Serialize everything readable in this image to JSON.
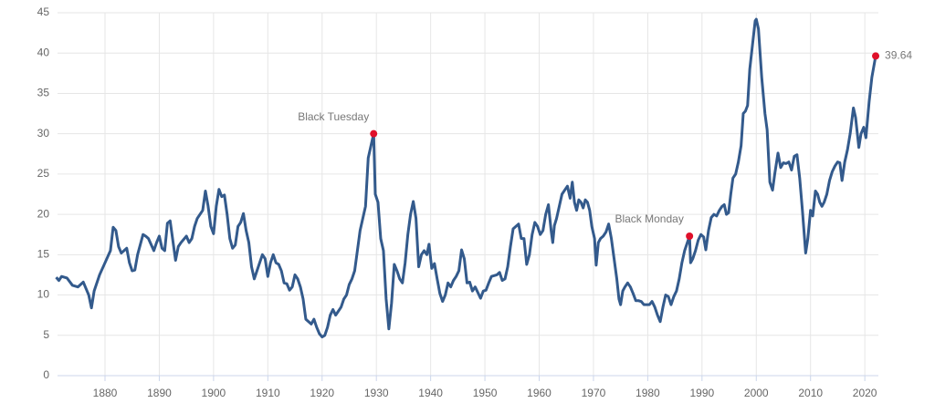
{
  "chart_data": {
    "type": "line",
    "xlim": [
      1871.25,
      2022.5
    ],
    "ylim": [
      0,
      45
    ],
    "xticks": [
      1880,
      1890,
      1900,
      1910,
      1920,
      1930,
      1940,
      1950,
      1960,
      1970,
      1980,
      1990,
      2000,
      2010,
      2020
    ],
    "yticks": [
      0,
      5,
      10,
      15,
      20,
      25,
      30,
      35,
      40,
      45
    ],
    "grid": true,
    "series": [
      {
        "color": "#335a8c",
        "x": [
          1871,
          1871.5,
          1872,
          1873,
          1874,
          1875,
          1876,
          1877,
          1877.5,
          1878,
          1879,
          1880,
          1881,
          1881.5,
          1882,
          1882.5,
          1883,
          1884,
          1884.5,
          1885,
          1885.5,
          1886,
          1887,
          1887.5,
          1888,
          1889,
          1889.5,
          1890,
          1890.5,
          1891,
          1891.5,
          1892,
          1893,
          1893.5,
          1894,
          1895,
          1895.5,
          1896,
          1896.5,
          1897,
          1898,
          1898.5,
          1899,
          1899.5,
          1900,
          1900.5,
          1901,
          1901.5,
          1902,
          1902.5,
          1903,
          1903.5,
          1904,
          1904.5,
          1905,
          1905.5,
          1906,
          1906.5,
          1907,
          1907.5,
          1908,
          1909,
          1909.5,
          1910,
          1910.5,
          1911,
          1911.5,
          1912,
          1912.5,
          1913,
          1913.5,
          1914,
          1914.5,
          1915,
          1915.5,
          1916,
          1916.5,
          1917,
          1918,
          1918.5,
          1919,
          1919.5,
          1920,
          1920.5,
          1921,
          1921.5,
          1922,
          1922.5,
          1923,
          1923.5,
          1924,
          1924.5,
          1925,
          1925.5,
          1926,
          1926.5,
          1927,
          1928,
          1928.5,
          1929.5,
          1929.8,
          1930.3,
          1930.8,
          1931.3,
          1931.8,
          1932.3,
          1932.8,
          1933.3,
          1933.8,
          1934.3,
          1934.8,
          1935.3,
          1935.8,
          1936.3,
          1936.8,
          1937.3,
          1937.8,
          1938.3,
          1938.8,
          1939.3,
          1939.7,
          1940.2,
          1940.7,
          1941.2,
          1941.7,
          1942.2,
          1942.7,
          1943.2,
          1943.7,
          1944.2,
          1944.7,
          1945.2,
          1945.7,
          1946.2,
          1946.7,
          1947.2,
          1947.7,
          1948.2,
          1948.7,
          1949.2,
          1949.7,
          1950.2,
          1950.7,
          1951.2,
          1951.7,
          1952.2,
          1952.7,
          1953.2,
          1953.7,
          1954.2,
          1954.7,
          1955.2,
          1955.7,
          1956.2,
          1956.7,
          1957.2,
          1957.7,
          1958.2,
          1958.7,
          1959.2,
          1959.7,
          1960.2,
          1960.7,
          1961.2,
          1961.7,
          1962.2,
          1962.5,
          1962.8,
          1963.2,
          1963.7,
          1964.2,
          1964.7,
          1965.2,
          1965.7,
          1966.1,
          1966.5,
          1966.9,
          1967.3,
          1967.7,
          1968.1,
          1968.5,
          1968.9,
          1969.3,
          1969.7,
          1970.2,
          1970.5,
          1970.9,
          1971.3,
          1971.8,
          1972.3,
          1972.8,
          1973.3,
          1973.8,
          1974.3,
          1974.7,
          1975,
          1975.4,
          1975.8,
          1976.3,
          1976.8,
          1977.3,
          1977.8,
          1978.3,
          1978.8,
          1979.3,
          1979.8,
          1980.3,
          1980.8,
          1981.3,
          1981.8,
          1982.3,
          1982.8,
          1983.3,
          1983.8,
          1984.3,
          1984.8,
          1985.3,
          1985.8,
          1986.3,
          1986.8,
          1987.7,
          1987.9,
          1988.3,
          1988.8,
          1989.3,
          1989.8,
          1990.3,
          1990.7,
          1991.2,
          1991.7,
          1992.2,
          1992.7,
          1993.2,
          1993.7,
          1994.1,
          1994.5,
          1994.9,
          1995.3,
          1995.7,
          1996.2,
          1996.7,
          1997.2,
          1997.6,
          1998,
          1998.4,
          1998.8,
          1999.3,
          1999.8,
          2000,
          2000.4,
          2001,
          2001.6,
          2002,
          2002.5,
          2003,
          2003.4,
          2004,
          2004.5,
          2005,
          2005.5,
          2006,
          2006.5,
          2007,
          2007.5,
          2008,
          2008.5,
          2009.1,
          2009.5,
          2010,
          2010.4,
          2010.9,
          2011.3,
          2011.7,
          2012.1,
          2012.5,
          2013,
          2013.5,
          2014,
          2014.5,
          2015,
          2015.4,
          2015.8,
          2016.3,
          2016.8,
          2017.3,
          2017.9,
          2018.3,
          2018.9,
          2019.3,
          2019.8,
          2020.2,
          2020.8,
          2021.3,
          2022
        ],
        "values": [
          12.2,
          11.8,
          12.3,
          12.1,
          11.2,
          11.0,
          11.6,
          10.0,
          8.4,
          10.5,
          12.5,
          14.0,
          15.5,
          18.4,
          18.0,
          16.0,
          15.2,
          15.8,
          14.0,
          13.0,
          13.1,
          15.0,
          17.5,
          17.3,
          17.0,
          15.5,
          16.5,
          17.3,
          15.8,
          15.5,
          18.9,
          19.2,
          14.3,
          16.0,
          16.5,
          17.3,
          16.5,
          17.0,
          18.5,
          19.5,
          20.5,
          22.9,
          21.0,
          18.5,
          17.6,
          21.0,
          23.1,
          22.2,
          22.4,
          20.0,
          17.0,
          15.8,
          16.2,
          18.5,
          19.0,
          20.1,
          18.0,
          16.5,
          13.5,
          12.0,
          13.0,
          15.0,
          14.5,
          12.3,
          14.0,
          15.0,
          14.0,
          13.8,
          13.0,
          11.5,
          11.4,
          10.6,
          11.0,
          12.5,
          12.0,
          11.0,
          9.5,
          7.0,
          6.4,
          7.0,
          6.0,
          5.2,
          4.8,
          5.0,
          6.0,
          7.5,
          8.2,
          7.5,
          8.0,
          8.5,
          9.5,
          10.0,
          11.3,
          12.0,
          13.0,
          15.5,
          18.0,
          21.0,
          27.0,
          30.0,
          22.5,
          21.5,
          17.0,
          15.5,
          9.5,
          5.8,
          9.0,
          13.8,
          13.0,
          12.0,
          11.5,
          14.0,
          17.5,
          20.0,
          21.6,
          19.5,
          13.5,
          15.0,
          15.5,
          15.0,
          16.3,
          13.3,
          13.9,
          12.0,
          10.2,
          9.2,
          10.0,
          11.5,
          11.0,
          11.8,
          12.3,
          13.0,
          15.6,
          14.5,
          11.5,
          11.6,
          10.5,
          11.0,
          10.3,
          9.6,
          10.5,
          10.6,
          11.5,
          12.3,
          12.4,
          12.5,
          12.8,
          11.8,
          12.0,
          13.5,
          16.0,
          18.2,
          18.5,
          18.8,
          17.0,
          17.0,
          13.8,
          15.0,
          17.5,
          19.0,
          18.5,
          17.5,
          18.0,
          20.0,
          21.2,
          18.0,
          16.5,
          18.6,
          19.5,
          21.0,
          22.5,
          23.0,
          23.5,
          22.0,
          24.0,
          21.5,
          20.5,
          21.8,
          21.5,
          20.8,
          21.8,
          21.5,
          20.5,
          18.5,
          17.0,
          13.7,
          16.5,
          17.0,
          17.3,
          17.8,
          18.8,
          17.0,
          14.5,
          12.0,
          9.5,
          8.8,
          10.5,
          11.0,
          11.5,
          11.0,
          10.2,
          9.3,
          9.3,
          9.2,
          8.8,
          8.8,
          8.8,
          9.2,
          8.5,
          7.5,
          6.7,
          8.5,
          10.0,
          9.8,
          8.8,
          9.8,
          10.5,
          12.0,
          14.0,
          15.5,
          17.3,
          14.0,
          14.5,
          15.5,
          16.8,
          17.5,
          17.2,
          15.6,
          18.0,
          19.6,
          20.0,
          19.8,
          20.5,
          21.0,
          21.2,
          20.0,
          20.2,
          22.5,
          24.5,
          25.0,
          26.5,
          28.5,
          32.5,
          32.8,
          33.5,
          38.0,
          41.0,
          44.0,
          44.2,
          43.0,
          37.0,
          32.5,
          30.5,
          24.0,
          23.0,
          25.0,
          27.6,
          25.8,
          26.4,
          26.3,
          26.5,
          25.5,
          27.2,
          27.4,
          24.5,
          20.5,
          15.2,
          17.0,
          20.5,
          19.8,
          22.9,
          22.5,
          21.5,
          21.0,
          21.5,
          22.5,
          24.2,
          25.3,
          26.0,
          26.5,
          26.4,
          24.2,
          26.5,
          28.0,
          30.0,
          33.2,
          32.0,
          28.3,
          30.0,
          30.8,
          29.5,
          34.0,
          37.0,
          39.64
        ]
      }
    ],
    "annotations": [
      {
        "text": "Black Tuesday",
        "x": 1929.5,
        "y": 30.0,
        "color": "#e0102a"
      },
      {
        "text": "Black Monday",
        "x": 1987.7,
        "y": 17.3,
        "color": "#e0102a"
      },
      {
        "text": "39.64",
        "x": 2022,
        "y": 39.64,
        "color": "#e0102a"
      }
    ]
  }
}
